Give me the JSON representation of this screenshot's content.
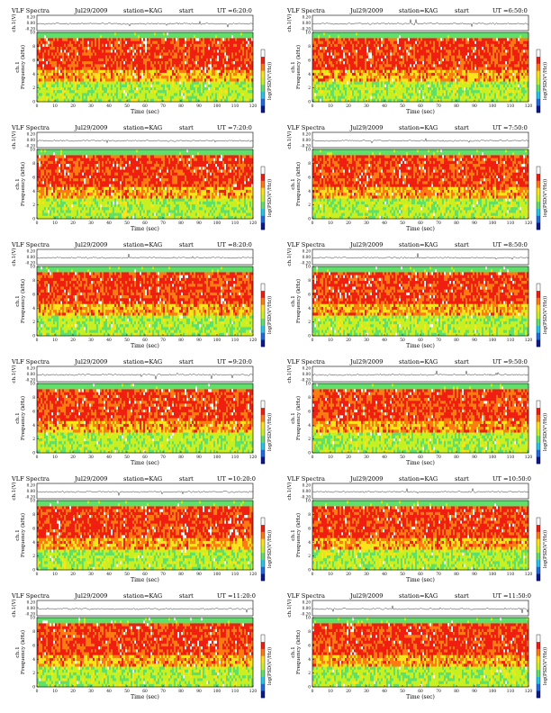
{
  "chart_data": [
    {
      "type": "heatmap",
      "title": "VLF Spectra",
      "date": "Jul29/2009",
      "station": "station=KAG",
      "start_label": "start",
      "start_time": "UT =6:20:0",
      "waveform_ylabel": "ch.1(V)",
      "waveform_yticks": [
        "0.20",
        "0.00",
        "-0.20"
      ],
      "yticks": [
        "10",
        "8",
        "6",
        "4",
        "2",
        "0"
      ],
      "xticks": [
        "0",
        "10",
        "20",
        "30",
        "40",
        "50",
        "60",
        "70",
        "80",
        "90",
        "100",
        "110",
        "120"
      ],
      "xlabel": "Time (sec)",
      "ylabel": "Frequency (kHz)",
      "channel": "ch.1",
      "colorbar_label": "log(PSD(V²/Hz))",
      "xlim": [
        0,
        120
      ],
      "ylim": [
        0,
        10
      ]
    },
    {
      "type": "heatmap",
      "title": "VLF Spectra",
      "date": "Jul29/2009",
      "station": "station=KAG",
      "start_label": "start",
      "start_time": "UT =6:50:0",
      "waveform_ylabel": "ch.1(V)",
      "waveform_yticks": [
        "0.20",
        "0.00",
        "-0.20"
      ],
      "yticks": [
        "10",
        "8",
        "6",
        "4",
        "2",
        "0"
      ],
      "xticks": [
        "0",
        "10",
        "20",
        "30",
        "40",
        "50",
        "60",
        "70",
        "80",
        "90",
        "100",
        "110",
        "120"
      ],
      "xlabel": "Time (sec)",
      "ylabel": "Frequency (kHz)",
      "channel": "ch.1",
      "colorbar_label": "log(PSD(V²/Hz))",
      "xlim": [
        0,
        120
      ],
      "ylim": [
        0,
        10
      ]
    },
    {
      "type": "heatmap",
      "title": "VLF Spectra",
      "date": "Jul29/2009",
      "station": "station=KAG",
      "start_label": "start",
      "start_time": "UT =7:20:0",
      "waveform_ylabel": "ch.1(V)",
      "waveform_yticks": [
        "0.20",
        "0.00",
        "-0.20"
      ],
      "yticks": [
        "10",
        "8",
        "6",
        "4",
        "2",
        "0"
      ],
      "xticks": [
        "0",
        "10",
        "20",
        "30",
        "40",
        "50",
        "60",
        "70",
        "80",
        "90",
        "100",
        "110",
        "120"
      ],
      "xlabel": "Time (sec)",
      "ylabel": "Frequency (kHz)",
      "channel": "ch.1",
      "colorbar_label": "log(PSD(V²/Hz))",
      "xlim": [
        0,
        120
      ],
      "ylim": [
        0,
        10
      ]
    },
    {
      "type": "heatmap",
      "title": "VLF Spectra",
      "date": "Jul29/2009",
      "station": "station=KAG",
      "start_label": "start",
      "start_time": "UT =7:50:0",
      "waveform_ylabel": "ch.1(V)",
      "waveform_yticks": [
        "0.20",
        "0.00",
        "-0.20"
      ],
      "yticks": [
        "10",
        "8",
        "6",
        "4",
        "2",
        "0"
      ],
      "xticks": [
        "0",
        "10",
        "20",
        "30",
        "40",
        "50",
        "60",
        "70",
        "80",
        "90",
        "100",
        "110",
        "120"
      ],
      "xlabel": "Time (sec)",
      "ylabel": "Frequency (kHz)",
      "channel": "ch.1",
      "colorbar_label": "log(PSD(V²/Hz))",
      "xlim": [
        0,
        120
      ],
      "ylim": [
        0,
        10
      ]
    },
    {
      "type": "heatmap",
      "title": "VLF Spectra",
      "date": "Jul29/2009",
      "station": "station=KAG",
      "start_label": "start",
      "start_time": "UT =8:20:0",
      "waveform_ylabel": "ch.1(V)",
      "waveform_yticks": [
        "0.20",
        "0.00",
        "-0.20"
      ],
      "yticks": [
        "10",
        "8",
        "6",
        "4",
        "2",
        "0"
      ],
      "xticks": [
        "0",
        "10",
        "20",
        "30",
        "40",
        "50",
        "60",
        "70",
        "80",
        "90",
        "100",
        "110",
        "120"
      ],
      "xlabel": "Time (sec)",
      "ylabel": "Frequency (kHz)",
      "channel": "ch.1",
      "colorbar_label": "log(PSD(V²/Hz))",
      "xlim": [
        0,
        120
      ],
      "ylim": [
        0,
        10
      ]
    },
    {
      "type": "heatmap",
      "title": "VLF Spectra",
      "date": "Jul29/2009",
      "station": "station=KAG",
      "start_label": "start",
      "start_time": "UT =8:50:0",
      "waveform_ylabel": "ch.1(V)",
      "waveform_yticks": [
        "0.20",
        "0.00",
        "-0.20"
      ],
      "yticks": [
        "10",
        "8",
        "6",
        "4",
        "2",
        "0"
      ],
      "xticks": [
        "0",
        "10",
        "20",
        "30",
        "40",
        "50",
        "60",
        "70",
        "80",
        "90",
        "100",
        "110",
        "120"
      ],
      "xlabel": "Time (sec)",
      "ylabel": "Frequency (kHz)",
      "channel": "ch.1",
      "colorbar_label": "log(PSD(V²/Hz))",
      "xlim": [
        0,
        120
      ],
      "ylim": [
        0,
        10
      ]
    },
    {
      "type": "heatmap",
      "title": "VLF Spectra",
      "date": "Jul29/2009",
      "station": "station=KAG",
      "start_label": "start",
      "start_time": "UT =9:20:0",
      "waveform_ylabel": "ch.1(V)",
      "waveform_yticks": [
        "0.20",
        "0.00",
        "-0.20"
      ],
      "yticks": [
        "10",
        "8",
        "6",
        "4",
        "2",
        "0"
      ],
      "xticks": [
        "0",
        "10",
        "20",
        "30",
        "40",
        "50",
        "60",
        "70",
        "80",
        "90",
        "100",
        "110",
        "120"
      ],
      "xlabel": "Time (sec)",
      "ylabel": "Frequency (kHz)",
      "channel": "ch.1",
      "colorbar_label": "log(PSD(V²/Hz))",
      "xlim": [
        0,
        120
      ],
      "ylim": [
        0,
        10
      ]
    },
    {
      "type": "heatmap",
      "title": "VLF Spectra",
      "date": "Jul29/2009",
      "station": "station=KAG",
      "start_label": "start",
      "start_time": "UT =9:50:0",
      "waveform_ylabel": "ch.1(V)",
      "waveform_yticks": [
        "0.20",
        "0.00",
        "-0.20"
      ],
      "yticks": [
        "10",
        "8",
        "6",
        "4",
        "2",
        "0"
      ],
      "xticks": [
        "0",
        "10",
        "20",
        "30",
        "40",
        "50",
        "60",
        "70",
        "80",
        "90",
        "100",
        "110",
        "120"
      ],
      "xlabel": "Time (sec)",
      "ylabel": "Frequency (kHz)",
      "channel": "ch.1",
      "colorbar_label": "log(PSD(V²/Hz))",
      "xlim": [
        0,
        120
      ],
      "ylim": [
        0,
        10
      ]
    },
    {
      "type": "heatmap",
      "title": "VLF Spectra",
      "date": "Jul29/2009",
      "station": "station=KAG",
      "start_label": "start",
      "start_time": "UT =10:20:0",
      "waveform_ylabel": "ch.1(V)",
      "waveform_yticks": [
        "0.20",
        "0.00",
        "-0.20"
      ],
      "yticks": [
        "10",
        "8",
        "6",
        "4",
        "2",
        "0"
      ],
      "xticks": [
        "0",
        "10",
        "20",
        "30",
        "40",
        "50",
        "60",
        "70",
        "80",
        "90",
        "100",
        "110",
        "120"
      ],
      "xlabel": "Time (sec)",
      "ylabel": "Frequency (kHz)",
      "channel": "ch.1",
      "colorbar_label": "log(PSD(V²/Hz))",
      "xlim": [
        0,
        120
      ],
      "ylim": [
        0,
        10
      ]
    },
    {
      "type": "heatmap",
      "title": "VLF Spectra",
      "date": "Jul29/2009",
      "station": "station=KAG",
      "start_label": "start",
      "start_time": "UT =10:50:0",
      "waveform_ylabel": "ch.1(V)",
      "waveform_yticks": [
        "0.20",
        "0.00",
        "-0.20"
      ],
      "yticks": [
        "10",
        "8",
        "6",
        "4",
        "2",
        "0"
      ],
      "xticks": [
        "0",
        "10",
        "20",
        "30",
        "40",
        "50",
        "60",
        "70",
        "80",
        "90",
        "100",
        "110",
        "120"
      ],
      "xlabel": "Time (sec)",
      "ylabel": "Frequency (kHz)",
      "channel": "ch.1",
      "colorbar_label": "log(PSD(V²/Hz))",
      "xlim": [
        0,
        120
      ],
      "ylim": [
        0,
        10
      ]
    },
    {
      "type": "heatmap",
      "title": "VLF Spectra",
      "date": "Jul29/2009",
      "station": "station=KAG",
      "start_label": "start",
      "start_time": "UT =11:20:0",
      "waveform_ylabel": "ch.1(V)",
      "waveform_yticks": [
        "0.20",
        "0.00",
        "-0.20"
      ],
      "yticks": [
        "10",
        "8",
        "6",
        "4",
        "2",
        "0"
      ],
      "xticks": [
        "0",
        "10",
        "20",
        "30",
        "40",
        "50",
        "60",
        "70",
        "80",
        "90",
        "100",
        "110",
        "120"
      ],
      "xlabel": "Time (sec)",
      "ylabel": "Frequency (kHz)",
      "channel": "ch.1",
      "colorbar_label": "log(PSD(V²/Hz))",
      "xlim": [
        0,
        120
      ],
      "ylim": [
        0,
        10
      ]
    },
    {
      "type": "heatmap",
      "title": "VLF Spectra",
      "date": "Jul29/2009",
      "station": "station=KAG",
      "start_label": "start",
      "start_time": "UT =11:50:0",
      "waveform_ylabel": "ch.1(V)",
      "waveform_yticks": [
        "0.20",
        "0.00",
        "-0.20"
      ],
      "yticks": [
        "10",
        "8",
        "6",
        "4",
        "2",
        "0"
      ],
      "xticks": [
        "0",
        "10",
        "20",
        "30",
        "40",
        "50",
        "60",
        "70",
        "80",
        "90",
        "100",
        "110",
        "120"
      ],
      "xlabel": "Time (sec)",
      "ylabel": "Frequency (kHz)",
      "channel": "ch.1",
      "colorbar_label": "log(PSD(V²/Hz))",
      "xlim": [
        0,
        120
      ],
      "ylim": [
        0,
        10
      ]
    }
  ],
  "colors": {
    "background": "#ffffff",
    "axis": "#000000",
    "colormap": [
      "#0a1a8c",
      "#1e6be0",
      "#25c4e8",
      "#5ee06a",
      "#c8f020",
      "#ffe21a",
      "#ff7a10",
      "#f01e10",
      "#ffffff"
    ],
    "waveform": "#333333"
  }
}
